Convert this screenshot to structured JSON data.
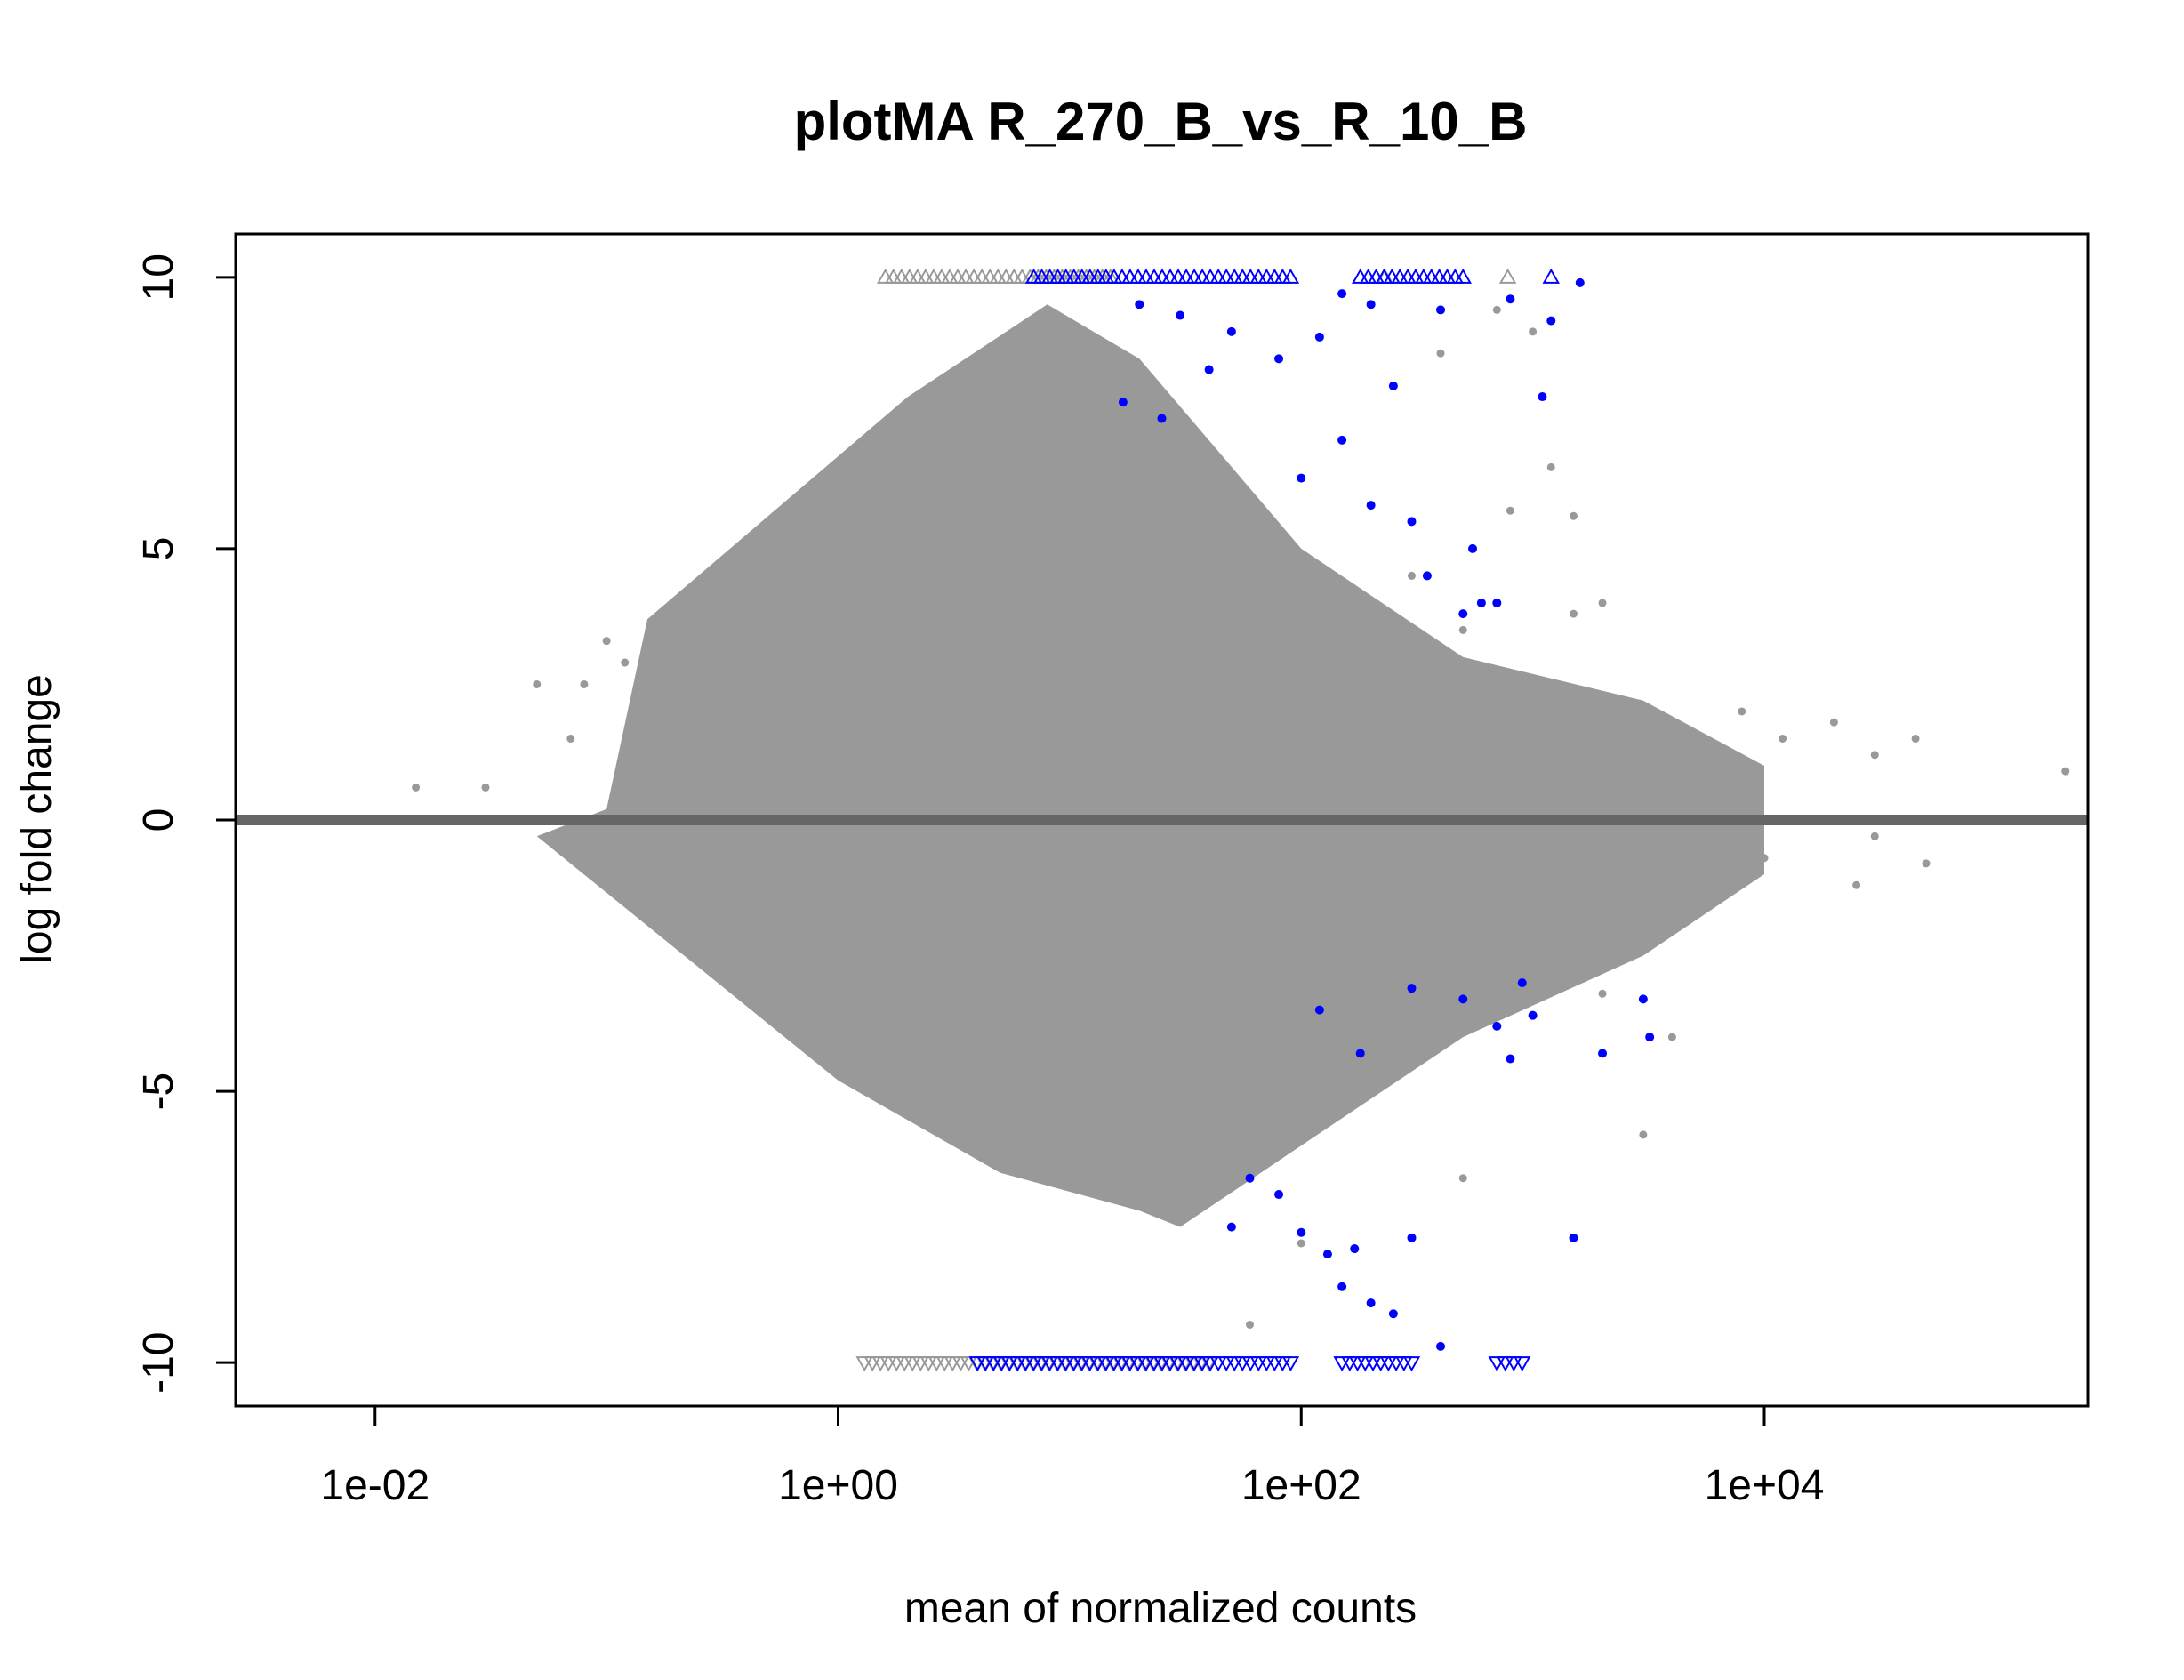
{
  "chart_data": {
    "type": "scatter",
    "title": "plotMA R_270_B_vs_R_10_B",
    "xlabel": "mean of normalized counts",
    "ylabel": "log fold change",
    "x_scale": "log10",
    "xlim": [
      0.0025,
      250000
    ],
    "ylim": [
      -10.8,
      10.8
    ],
    "x_ticks": [
      {
        "value": 0.01,
        "label": "1e-02"
      },
      {
        "value": 1,
        "label": "1e+00"
      },
      {
        "value": 100,
        "label": "1e+02"
      },
      {
        "value": 10000,
        "label": "1e+04"
      }
    ],
    "y_ticks": [
      {
        "value": -10,
        "label": "-10"
      },
      {
        "value": -5,
        "label": "-5"
      },
      {
        "value": 0,
        "label": "0"
      },
      {
        "value": 5,
        "label": "5"
      },
      {
        "value": 10,
        "label": "10"
      }
    ],
    "reference_line": {
      "y": 0,
      "color": "#666666"
    },
    "colors": {
      "not_significant": "#999999",
      "significant": "#0000FF"
    },
    "series": [
      {
        "significant": false,
        "color": "#999999",
        "points": [
          [
            0.015,
            0.6
          ],
          [
            0.03,
            0.6
          ],
          [
            0.05,
            2.5
          ],
          [
            0.07,
            1.5
          ],
          [
            0.08,
            2.5
          ],
          [
            0.1,
            3.3
          ],
          [
            0.12,
            2.9
          ],
          [
            300,
            4.5
          ],
          [
            500,
            3.5
          ],
          [
            800,
            5.7
          ],
          [
            1200,
            6.5
          ],
          [
            1500,
            5.6
          ],
          [
            2000,
            4.0
          ],
          [
            3000,
            2.0
          ],
          [
            5000,
            1.5
          ],
          [
            8000,
            2.0
          ],
          [
            12000,
            1.5
          ],
          [
            20000,
            1.8
          ],
          [
            30000,
            1.2
          ],
          [
            45000,
            1.5
          ],
          [
            200000,
            0.9
          ],
          [
            1500,
            3.8
          ],
          [
            1000,
            9.0
          ],
          [
            700,
            9.4
          ],
          [
            400,
            8.6
          ],
          [
            250,
            8.0
          ],
          [
            5000,
            -1.2
          ],
          [
            10000,
            -0.7
          ],
          [
            25000,
            -1.2
          ],
          [
            50000,
            -0.8
          ],
          [
            30000,
            -0.3
          ],
          [
            3000,
            -5.8
          ],
          [
            2000,
            -3.2
          ],
          [
            500,
            -6.6
          ],
          [
            200,
            -5.0
          ],
          [
            100,
            -7.8
          ],
          [
            60,
            -9.3
          ],
          [
            1500,
            -7.7
          ],
          [
            4000,
            -4.0
          ]
        ],
        "envelope": [
          [
            0.1,
            0.2
          ],
          [
            0.15,
            3.7
          ],
          [
            2,
            7.8
          ],
          [
            8,
            9.5
          ],
          [
            20,
            8.5
          ],
          [
            100,
            5.0
          ],
          [
            500,
            3.0
          ],
          [
            3000,
            2.2
          ],
          [
            10000,
            1.0
          ],
          [
            10000,
            -1.0
          ],
          [
            3000,
            -2.5
          ],
          [
            500,
            -4.0
          ],
          [
            100,
            -6.0
          ],
          [
            30,
            -7.5
          ],
          [
            20,
            -7.2
          ],
          [
            5,
            -6.5
          ],
          [
            1,
            -4.8
          ],
          [
            0.05,
            -0.3
          ]
        ]
      },
      {
        "significant": true,
        "color": "#0000FF",
        "points": [
          [
            20,
            9.5
          ],
          [
            30,
            9.3
          ],
          [
            50,
            9.0
          ],
          [
            80,
            8.5
          ],
          [
            120,
            8.9
          ],
          [
            150,
            9.7
          ],
          [
            200,
            9.5
          ],
          [
            400,
            9.4
          ],
          [
            800,
            9.6
          ],
          [
            1200,
            9.2
          ],
          [
            1600,
            9.9
          ],
          [
            17,
            7.7
          ],
          [
            25,
            7.4
          ],
          [
            40,
            8.3
          ],
          [
            250,
            8.0
          ],
          [
            1100,
            7.8
          ],
          [
            150,
            7.0
          ],
          [
            200,
            5.8
          ],
          [
            300,
            5.5
          ],
          [
            100,
            6.3
          ],
          [
            350,
            4.5
          ],
          [
            500,
            3.8
          ],
          [
            550,
            5.0
          ],
          [
            600,
            4.0
          ],
          [
            700,
            4.0
          ],
          [
            120,
            -3.5
          ],
          [
            180,
            -4.3
          ],
          [
            300,
            -3.1
          ],
          [
            500,
            -3.3
          ],
          [
            700,
            -3.8
          ],
          [
            800,
            -4.4
          ],
          [
            900,
            -3.0
          ],
          [
            1000,
            -3.6
          ],
          [
            2000,
            -4.3
          ],
          [
            3000,
            -3.3
          ],
          [
            3200,
            -4.0
          ],
          [
            50,
            -7.5
          ],
          [
            60,
            -6.6
          ],
          [
            80,
            -6.9
          ],
          [
            100,
            -7.6
          ],
          [
            130,
            -8.0
          ],
          [
            150,
            -8.6
          ],
          [
            170,
            -7.9
          ],
          [
            200,
            -8.9
          ],
          [
            250,
            -9.1
          ],
          [
            300,
            -7.7
          ],
          [
            400,
            -9.7
          ],
          [
            1500,
            -7.7
          ]
        ]
      }
    ],
    "clipped": {
      "top": {
        "y": 10,
        "marker": "triangle-up",
        "grey_x": [
          [
            1.6,
            15
          ],
          [
            230
          ],
          [
            780
          ]
        ],
        "blue_x": [
          [
            7,
            90
          ],
          [
            180,
            500
          ],
          [
            1200
          ]
        ]
      },
      "bottom": {
        "y": -10,
        "marker": "triangle-down",
        "grey_x": [
          [
            1.3,
            40
          ]
        ],
        "blue_x": [
          [
            4,
            90
          ],
          [
            150,
            300
          ],
          [
            700,
            900
          ]
        ]
      }
    }
  }
}
